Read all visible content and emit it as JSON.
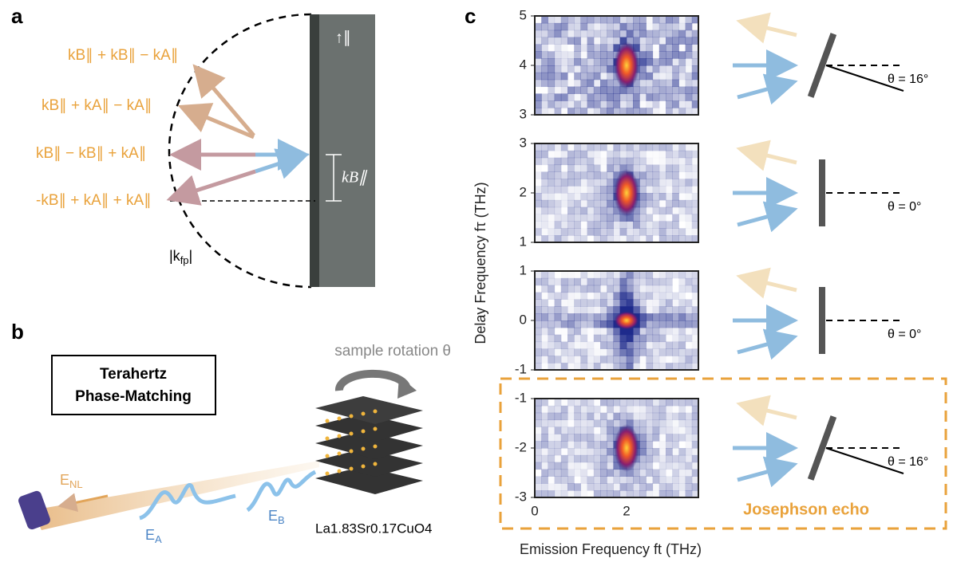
{
  "panel_a": {
    "letter": "a",
    "parallel": "↑∥",
    "terms": [
      "kB∥ + kB∥ − kA∥",
      "kB∥ + kA∥ − kA∥",
      "kB∥ − kB∥ + kA∥",
      "-kB∥ + kA∥ + kA∥"
    ],
    "bracket_label": "kB∥",
    "radius_label": {
      "symbol": "|k",
      "sub": "fp",
      "end": "|"
    }
  },
  "panel_b": {
    "letter": "b",
    "box_title": [
      "Terahertz",
      "Phase-Matching"
    ],
    "rotation_label": "sample rotation θ",
    "field_nl": {
      "symbol": "E",
      "sub": "NL"
    },
    "field_a": {
      "symbol": "E",
      "sub": "A"
    },
    "field_b": {
      "symbol": "E",
      "sub": "B"
    },
    "material": "La1.83Sr0.17CuO4"
  },
  "panel_c": {
    "letter": "c",
    "y_label": "Delay Frequency fτ (THz)",
    "x_label": "Emission Frequency ft (THz)",
    "x_ticks": [
      "0",
      "2"
    ],
    "maps": [
      {
        "y_ticks": [
          "5",
          "4",
          "3"
        ],
        "angle": "θ = 16°"
      },
      {
        "y_ticks": [
          "3",
          "2",
          "1"
        ],
        "angle": "θ = 0°"
      },
      {
        "y_ticks": [
          "1",
          "0",
          "-1"
        ],
        "angle": "θ = 0°"
      },
      {
        "y_ticks": [
          "-1",
          "-2",
          "-3"
        ],
        "angle": "θ = 16°"
      }
    ],
    "highlight": "Josephson echo"
  }
}
